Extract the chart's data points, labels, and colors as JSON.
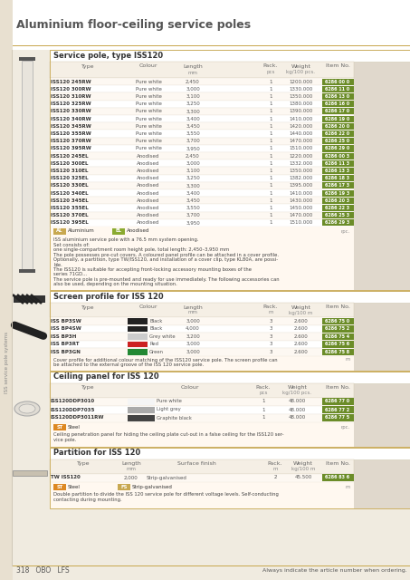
{
  "title": "Aluminium floor-ceiling service poles",
  "section1_title": "Service pole, type ISS120",
  "section1_rows_white": [
    [
      "ISS120 245RW",
      "Pure white",
      "2,450",
      "1",
      "1200.000",
      "6286 00 0"
    ],
    [
      "ISS120 300RW",
      "Pure white",
      "3,000",
      "1",
      "1330.000",
      "6286 11 0"
    ],
    [
      "ISS120 310RW",
      "Pure white",
      "3,100",
      "1",
      "1350.000",
      "6286 13 0"
    ],
    [
      "ISS120 325RW",
      "Pure white",
      "3,250",
      "1",
      "1380.000",
      "6286 16 0"
    ],
    [
      "ISS120 330RW",
      "Pure white",
      "3,300",
      "1",
      "1390.000",
      "6286 17 0"
    ],
    [
      "ISS120 340RW",
      "Pure white",
      "3,400",
      "1",
      "1410.000",
      "6286 19 0"
    ],
    [
      "ISS120 345RW",
      "Pure white",
      "3,450",
      "1",
      "1420.000",
      "6286 20 0"
    ],
    [
      "ISS120 355RW",
      "Pure white",
      "3,550",
      "1",
      "1440.000",
      "6286 22 0"
    ],
    [
      "ISS120 370RW",
      "Pure white",
      "3,700",
      "1",
      "1470.000",
      "6286 25 0"
    ],
    [
      "ISS120 395RW",
      "Pure white",
      "3,950",
      "1",
      "1510.000",
      "6286 29 0"
    ]
  ],
  "section1_rows_anodised": [
    [
      "ISS120 245EL",
      "Anodised",
      "2,450",
      "1",
      "1220.000",
      "6286 00 3"
    ],
    [
      "ISS120 300EL",
      "Anodised",
      "3,000",
      "1",
      "1332.000",
      "6286 11 3"
    ],
    [
      "ISS120 310EL",
      "Anodised",
      "3,100",
      "1",
      "1350.000",
      "6286 13 3"
    ],
    [
      "ISS120 325EL",
      "Anodised",
      "3,250",
      "1",
      "1382.000",
      "6286 18 3"
    ],
    [
      "ISS120 330EL",
      "Anodised",
      "3,300",
      "1",
      "1395.000",
      "6286 17 3"
    ],
    [
      "ISS120 340EL",
      "Anodised",
      "3,400",
      "1",
      "1410.000",
      "6286 19 3"
    ],
    [
      "ISS120 345EL",
      "Anodised",
      "3,450",
      "1",
      "1430.000",
      "6286 20 3"
    ],
    [
      "ISS120 355EL",
      "Anodised",
      "3,550",
      "1",
      "1450.000",
      "6286 22 3"
    ],
    [
      "ISS120 370EL",
      "Anodised",
      "3,700",
      "1",
      "1470.000",
      "6286 25 3"
    ],
    [
      "ISS120 395EL",
      "Anodised",
      "3,950",
      "1",
      "1510.000",
      "6286 29 3"
    ]
  ],
  "section1_note_lines": [
    "ISS aluminium service pole with a 76.5 mm system opening.",
    "Set consists of:",
    "one single-compartment room height pole, total length: 2,450–3,950 mm",
    "The pole possesses pre-cut covers. A coloured panel profile can be attached in a cover profile.",
    "Optionally, a partition, type TW/ISS120, and installation of a cover clip, type KL80A, are possi-",
    "ble.",
    "The ISS120 is suitable for accepting front-locking accessory mounting boxes of the",
    "series 71GD...",
    "The service pole is pre-mounted and ready for use immediately. The following accessories can",
    "also be used, depending on the mounting situation."
  ],
  "section2_title": "Screen profile for ISS 120",
  "section2_rows": [
    [
      "ISS BP3SW",
      "Black",
      "3,000",
      "3",
      "2.600",
      "6286 75 0"
    ],
    [
      "ISS BP4SW",
      "Black",
      "4,000",
      "3",
      "2.600",
      "6286 75 2"
    ],
    [
      "ISS BP3H",
      "Grey white",
      "3,200",
      "3",
      "2.600",
      "6286 75 4"
    ],
    [
      "ISS BP3RT",
      "Red",
      "3,000",
      "3",
      "2.600",
      "6286 75 6"
    ],
    [
      "ISS BP3GN",
      "Green",
      "3,000",
      "3",
      "2.600",
      "6286 75 8"
    ]
  ],
  "section2_colour_boxes": [
    "#222222",
    "#222222",
    "#cccccc",
    "#cc2222",
    "#228833"
  ],
  "section2_note_lines": [
    "Cover profile for additional colour matching of the ISS120 service pole. The screen profile can",
    "be attached to the external groove of the ISS 120 service pole."
  ],
  "section3_title": "Ceiling panel for ISS 120",
  "section3_rows": [
    [
      "ISS120DDP3010",
      "Pure white",
      "1",
      "48.000",
      "6286 77 0"
    ],
    [
      "ISS120DDP7035",
      "Light grey",
      "1",
      "48.000",
      "6286 77 2"
    ],
    [
      "ISS120DDP3011RW",
      "Graphite black",
      "1",
      "48.000",
      "6286 77 5"
    ]
  ],
  "section3_colour_boxes": [
    "#f5f5f5",
    "#aaaaaa",
    "#444444"
  ],
  "section3_note_lines": [
    "Ceiling penetration panel for hiding the ceiling plate cut-out in a false ceiling for the ISS120 ser-",
    "vice pole."
  ],
  "section4_title": "Partition for ISS 120",
  "section4_rows": [
    [
      "TW ISS120",
      "2,000",
      "Strip-galvanised",
      "2",
      "45.500",
      "6286 83 6"
    ]
  ],
  "section4_note_lines": [
    "Double partition to divide the ISS 120 service pole for different voltage levels. Self-conducting",
    "contacting during mounting."
  ],
  "sidebar_text": "ISS service pole systems",
  "page_number": "318",
  "brand": "OBO   LFS",
  "footer_text": "Always indicate the article number when ordering.",
  "bg_outer": "#f0ebe0",
  "bg_white": "#ffffff",
  "bg_section": "#fff8f0",
  "bg_header_row": "#f5efe5",
  "bg_row_even": "#fdf8f2",
  "bg_row_odd": "#ffffff",
  "bg_img_area": "#e0d8cc",
  "color_gold": "#c8a850",
  "color_green_item": "#6b8c28",
  "color_AL_tag": "#c8a850",
  "color_EL_tag": "#8aaa30",
  "color_ST_tag": "#dd8822",
  "color_FS_tag": "#c8a850",
  "color_text": "#333333",
  "color_header_text": "#666666",
  "color_title": "#444444",
  "lw_border": 0.4
}
